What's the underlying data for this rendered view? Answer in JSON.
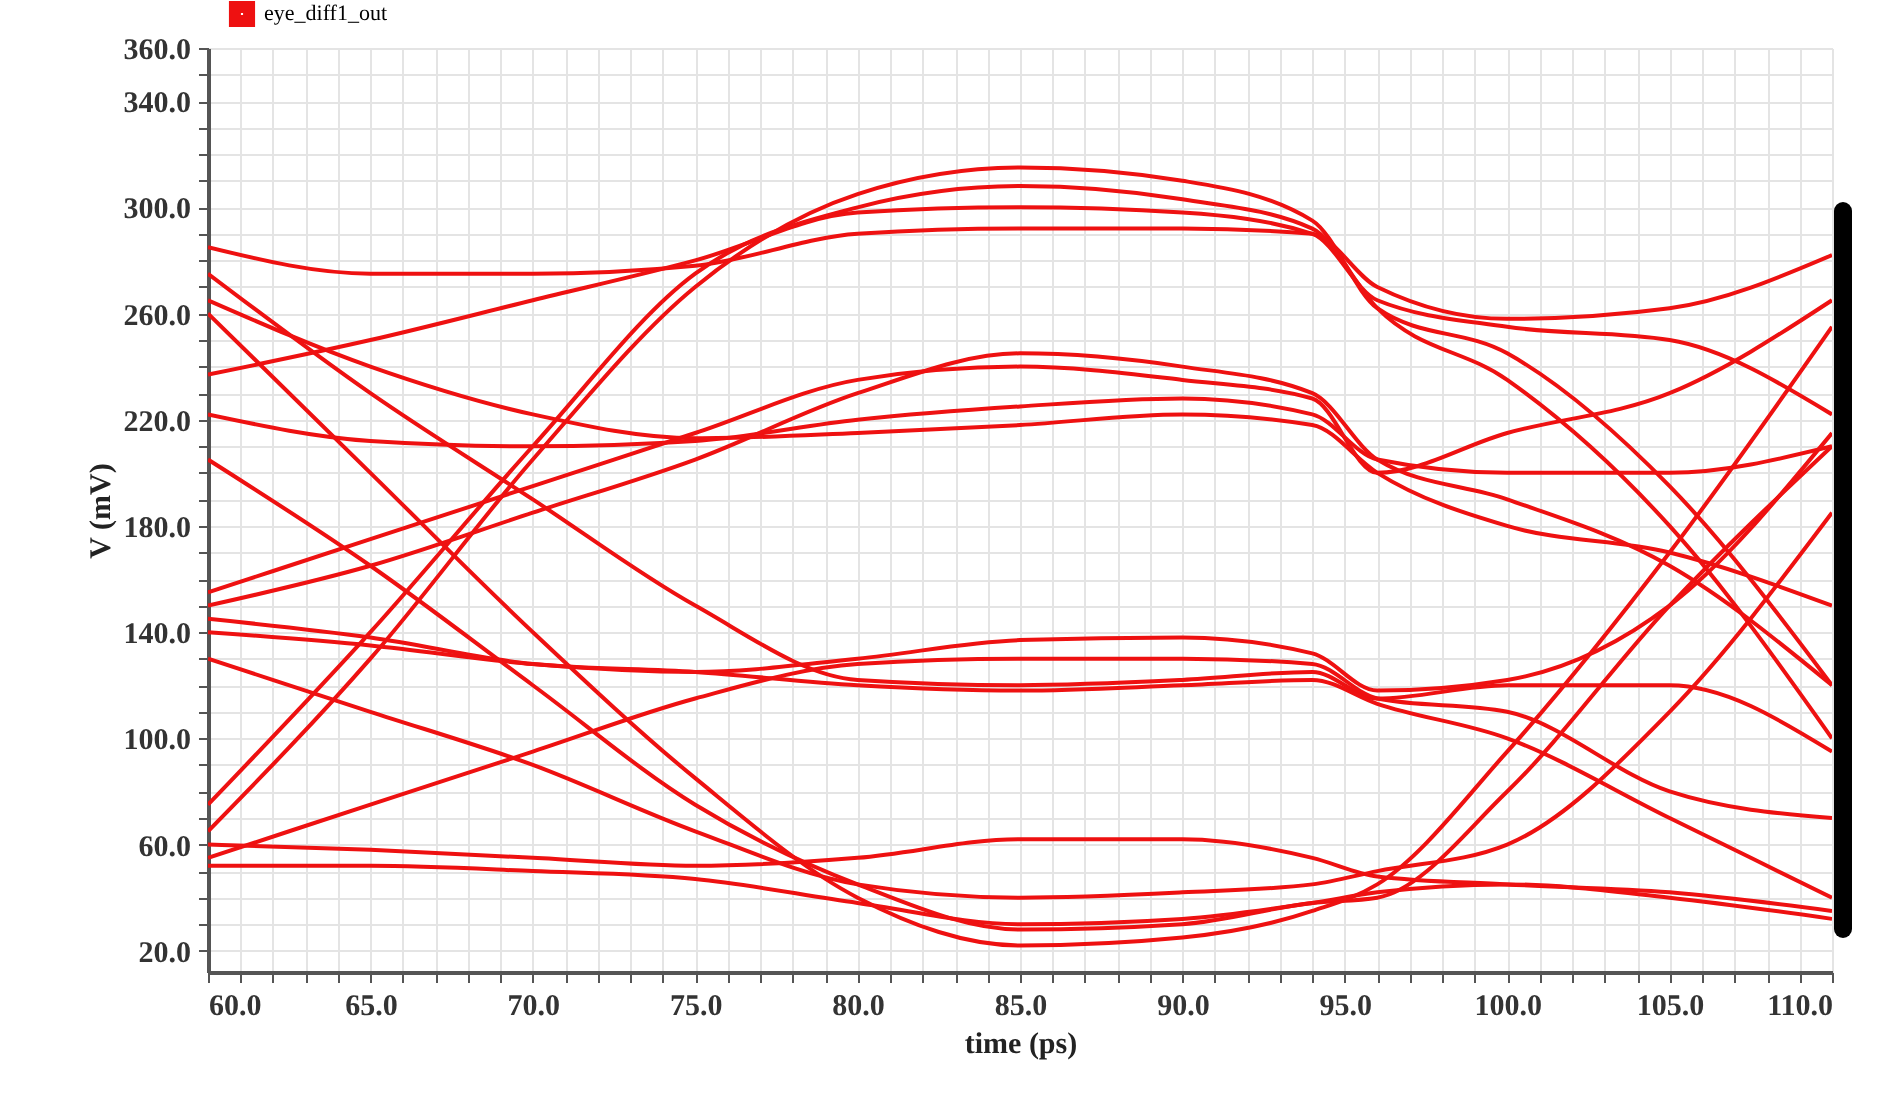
{
  "chart_data": {
    "type": "line",
    "xlabel": "time (ps)",
    "ylabel": "V (mV)",
    "legend": "top left",
    "grid": true,
    "line_style": "solid",
    "xlim": [
      60,
      110
    ],
    "ylim": [
      12,
      360
    ],
    "xticks": [
      {
        "value": 60,
        "label": "60.0"
      },
      {
        "value": 61,
        "label": null
      },
      {
        "value": 62,
        "label": null
      },
      {
        "value": 63,
        "label": null
      },
      {
        "value": 64,
        "label": null
      },
      {
        "value": 65,
        "label": "65.0"
      },
      {
        "value": 66,
        "label": null
      },
      {
        "value": 67,
        "label": null
      },
      {
        "value": 68,
        "label": null
      },
      {
        "value": 69,
        "label": null
      },
      {
        "value": 70,
        "label": "70.0"
      },
      {
        "value": 71,
        "label": null
      },
      {
        "value": 72,
        "label": null
      },
      {
        "value": 73,
        "label": null
      },
      {
        "value": 74,
        "label": null
      },
      {
        "value": 75,
        "label": "75.0"
      },
      {
        "value": 76,
        "label": null
      },
      {
        "value": 77,
        "label": null
      },
      {
        "value": 78,
        "label": null
      },
      {
        "value": 79,
        "label": null
      },
      {
        "value": 80,
        "label": "80.0"
      },
      {
        "value": 81,
        "label": null
      },
      {
        "value": 82,
        "label": null
      },
      {
        "value": 83,
        "label": null
      },
      {
        "value": 84,
        "label": null
      },
      {
        "value": 85,
        "label": "85.0"
      },
      {
        "value": 86,
        "label": null
      },
      {
        "value": 87,
        "label": null
      },
      {
        "value": 88,
        "label": null
      },
      {
        "value": 89,
        "label": null
      },
      {
        "value": 90,
        "label": "90.0"
      },
      {
        "value": 91,
        "label": null
      },
      {
        "value": 92,
        "label": null
      },
      {
        "value": 93,
        "label": null
      },
      {
        "value": 94,
        "label": null
      },
      {
        "value": 95,
        "label": "95.0"
      },
      {
        "value": 96,
        "label": null
      },
      {
        "value": 97,
        "label": null
      },
      {
        "value": 98,
        "label": null
      },
      {
        "value": 99,
        "label": null
      },
      {
        "value": 100,
        "label": "100.0"
      },
      {
        "value": 101,
        "label": null
      },
      {
        "value": 102,
        "label": null
      },
      {
        "value": 103,
        "label": null
      },
      {
        "value": 104,
        "label": null
      },
      {
        "value": 105,
        "label": "105.0"
      },
      {
        "value": 106,
        "label": null
      },
      {
        "value": 107,
        "label": null
      },
      {
        "value": 108,
        "label": null
      },
      {
        "value": 109,
        "label": null
      },
      {
        "value": 110,
        "label": "110.0"
      }
    ],
    "yticks": [
      {
        "value": 20,
        "label": "20.0"
      },
      {
        "value": 30,
        "label": null
      },
      {
        "value": 40,
        "label": null
      },
      {
        "value": 50,
        "label": null
      },
      {
        "value": 60,
        "label": "60.0"
      },
      {
        "value": 70,
        "label": null
      },
      {
        "value": 80,
        "label": null
      },
      {
        "value": 90,
        "label": null
      },
      {
        "value": 100,
        "label": "100.0"
      },
      {
        "value": 110,
        "label": null
      },
      {
        "value": 120,
        "label": null
      },
      {
        "value": 130,
        "label": null
      },
      {
        "value": 140,
        "label": "140.0"
      },
      {
        "value": 150,
        "label": null
      },
      {
        "value": 160,
        "label": null
      },
      {
        "value": 170,
        "label": null
      },
      {
        "value": 180,
        "label": "180.0"
      },
      {
        "value": 190,
        "label": null
      },
      {
        "value": 200,
        "label": null
      },
      {
        "value": 210,
        "label": null
      },
      {
        "value": 220,
        "label": "220.0"
      },
      {
        "value": 230,
        "label": null
      },
      {
        "value": 240,
        "label": null
      },
      {
        "value": 250,
        "label": null
      },
      {
        "value": 260,
        "label": "260.0"
      },
      {
        "value": 270,
        "label": null
      },
      {
        "value": 280,
        "label": null
      },
      {
        "value": 290,
        "label": null
      },
      {
        "value": 300,
        "label": "300.0"
      },
      {
        "value": 310,
        "label": null
      },
      {
        "value": 320,
        "label": null
      },
      {
        "value": 330,
        "label": null
      },
      {
        "value": 340,
        "label": "340.0"
      },
      {
        "value": 350,
        "label": null
      },
      {
        "value": 360,
        "label": "360.0"
      }
    ],
    "x": [
      60,
      65,
      70,
      75,
      80,
      85,
      90,
      94,
      96,
      100,
      105,
      110
    ],
    "series": [
      {
        "name": "eye_diff1_out",
        "color": "#ee1111",
        "values": [
          285,
          275,
          275,
          278,
          290,
          292,
          292,
          290,
          270,
          258,
          262,
          282
        ]
      },
      {
        "color": "#ee1111",
        "values": [
          237,
          250,
          265,
          280,
          298,
          300,
          298,
          290,
          265,
          255,
          250,
          222
        ]
      },
      {
        "color": "#ee1111",
        "values": [
          65,
          130,
          205,
          270,
          305,
          315,
          310,
          295,
          262,
          245,
          195,
          120
        ]
      },
      {
        "color": "#ee1111",
        "values": [
          75,
          140,
          210,
          275,
          300,
          308,
          303,
          292,
          262,
          235,
          180,
          100
        ]
      },
      {
        "color": "#ee1111",
        "values": [
          222,
          212,
          210,
          212,
          220,
          225,
          228,
          222,
          205,
          200,
          200,
          210
        ]
      },
      {
        "color": "#ee1111",
        "values": [
          150,
          165,
          185,
          205,
          230,
          245,
          240,
          230,
          205,
          190,
          165,
          120
        ]
      },
      {
        "color": "#ee1111",
        "values": [
          155,
          175,
          195,
          215,
          235,
          240,
          235,
          228,
          200,
          215,
          230,
          265
        ]
      },
      {
        "color": "#ee1111",
        "values": [
          265,
          240,
          222,
          213,
          215,
          218,
          222,
          218,
          200,
          180,
          170,
          150
        ]
      },
      {
        "color": "#ee1111",
        "values": [
          275,
          230,
          190,
          150,
          122,
          120,
          122,
          125,
          115,
          120,
          120,
          95
        ]
      },
      {
        "color": "#ee1111",
        "values": [
          140,
          135,
          128,
          125,
          130,
          137,
          138,
          132,
          118,
          122,
          150,
          215
        ]
      },
      {
        "color": "#ee1111",
        "values": [
          55,
          75,
          95,
          115,
          128,
          130,
          130,
          128,
          115,
          110,
          80,
          70
        ]
      },
      {
        "color": "#ee1111",
        "values": [
          145,
          138,
          128,
          125,
          120,
          118,
          120,
          122,
          113,
          100,
          70,
          40
        ]
      },
      {
        "color": "#ee1111",
        "values": [
          205,
          165,
          120,
          75,
          45,
          28,
          30,
          38,
          40,
          80,
          150,
          210
        ]
      },
      {
        "color": "#ee1111",
        "values": [
          260,
          200,
          140,
          85,
          40,
          22,
          25,
          35,
          45,
          95,
          170,
          255
        ]
      },
      {
        "color": "#ee1111",
        "values": [
          60,
          58,
          55,
          52,
          55,
          62,
          62,
          55,
          48,
          45,
          42,
          35
        ]
      },
      {
        "color": "#ee1111",
        "values": [
          52,
          52,
          50,
          47,
          38,
          30,
          32,
          38,
          42,
          45,
          40,
          32
        ]
      },
      {
        "color": "#ee1111",
        "values": [
          130,
          110,
          90,
          65,
          45,
          40,
          42,
          45,
          50,
          60,
          110,
          185
        ]
      }
    ]
  }
}
